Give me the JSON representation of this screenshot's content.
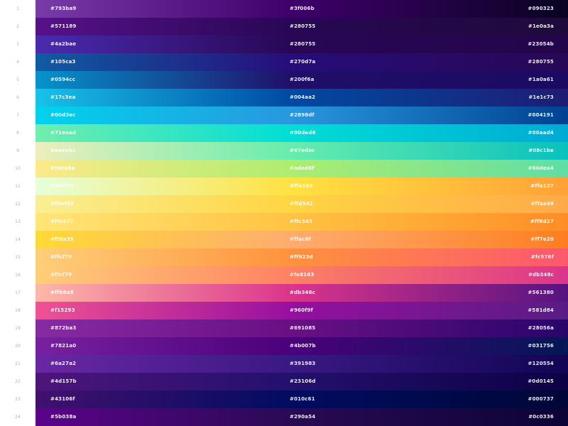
{
  "rows": [
    {
      "number": "1",
      "left": "#793ba9",
      "mid": "#3f006b",
      "right": "#090323"
    },
    {
      "number": "2",
      "left": "#571189",
      "mid": "#280755",
      "right": "#1e0a3a"
    },
    {
      "number": "3",
      "left": "#4a2bae",
      "mid": "#280755",
      "right": "#23054b"
    },
    {
      "number": "4",
      "left": "#105ca3",
      "mid": "#270d7a",
      "right": "#280755"
    },
    {
      "number": "5",
      "left": "#0594cc",
      "mid": "#200f6a",
      "right": "#1a0a61"
    },
    {
      "number": "6",
      "left": "#17c3ea",
      "mid": "#004aa2",
      "right": "#1e1c73"
    },
    {
      "number": "7",
      "left": "#00d3ec",
      "mid": "#2898df",
      "right": "#004191"
    },
    {
      "number": "8",
      "left": "#71eead",
      "mid": "#00ded6",
      "right": "#00aad4"
    },
    {
      "number": "9",
      "left": "#eeeebc",
      "mid": "#67edac",
      "right": "#08c1be"
    },
    {
      "number": "10",
      "left": "#fdea8a",
      "mid": "#aded6f",
      "right": "#60dea4"
    },
    {
      "number": "11",
      "left": "#e6ffd9",
      "mid": "#ffe242",
      "right": "#ffa137"
    },
    {
      "number": "12",
      "left": "#f9ef93",
      "mid": "#ffd542",
      "right": "#ffaa49"
    },
    {
      "number": "13",
      "left": "#ffe677",
      "mid": "#ffc343",
      "right": "#ff8d27"
    },
    {
      "number": "14",
      "left": "#ffda35",
      "mid": "#ffac6f",
      "right": "#ff7e20"
    },
    {
      "number": "15",
      "left": "#ffcf79",
      "mid": "#ff923d",
      "right": "#fc576f"
    },
    {
      "number": "16",
      "left": "#ffcf79",
      "mid": "#fe8163",
      "right": "#db348c"
    },
    {
      "number": "17",
      "left": "#ffb8a8",
      "mid": "#db348c",
      "right": "#561380"
    },
    {
      "number": "18",
      "left": "#f15293",
      "mid": "#960f9f",
      "right": "#581d84"
    },
    {
      "number": "19",
      "left": "#872ba3",
      "mid": "#691085",
      "right": "#28056a"
    },
    {
      "number": "20",
      "left": "#7821a0",
      "mid": "#4b007b",
      "right": "#031756"
    },
    {
      "number": "21",
      "left": "#6a27a2",
      "mid": "#391983",
      "right": "#120554"
    },
    {
      "number": "22",
      "left": "#4d157b",
      "mid": "#23106d",
      "right": "#0d0145"
    },
    {
      "number": "23",
      "left": "#43106f",
      "mid": "#010c61",
      "right": "#000737"
    },
    {
      "number": "24",
      "left": "#5b038a",
      "mid": "#290a54",
      "right": "#0c0336"
    }
  ]
}
